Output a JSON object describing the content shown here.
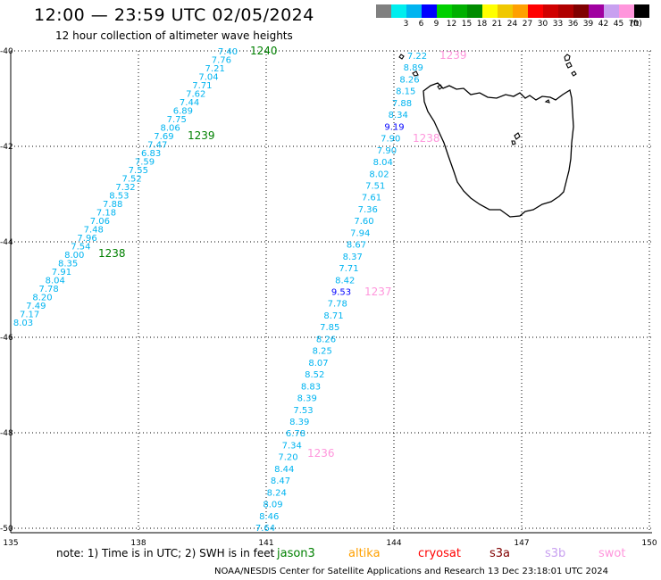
{
  "header": {
    "title": "12:00 — 23:59 UTC 02/05/2024",
    "subtitle": "12 hour collection of altimeter wave heights"
  },
  "legend": {
    "unit": "(ft)",
    "items": [
      {
        "label": "",
        "color": "#808080"
      },
      {
        "label": "3",
        "color": "#00eeee"
      },
      {
        "label": "6",
        "color": "#00b4f0"
      },
      {
        "label": "9",
        "color": "#0000ff"
      },
      {
        "label": "12",
        "color": "#00d000"
      },
      {
        "label": "15",
        "color": "#00b000"
      },
      {
        "label": "18",
        "color": "#008c00"
      },
      {
        "label": "21",
        "color": "#ffff00"
      },
      {
        "label": "24",
        "color": "#f0c800"
      },
      {
        "label": "27",
        "color": "#ffa000"
      },
      {
        "label": "30",
        "color": "#ff0000"
      },
      {
        "label": "33",
        "color": "#d00000"
      },
      {
        "label": "36",
        "color": "#b00000"
      },
      {
        "label": "39",
        "color": "#800000"
      },
      {
        "label": "42",
        "color": "#a000a0"
      },
      {
        "label": "45",
        "color": "#c8a0f0"
      },
      {
        "label": "70",
        "color": "#ff96dc"
      },
      {
        "label": "",
        "color": "#000000"
      }
    ]
  },
  "map": {
    "lat_labels": [
      "-40",
      "-42",
      "-44",
      "-46",
      "-48",
      "-50"
    ],
    "lon_labels": [
      "135",
      "138",
      "141",
      "144",
      "147",
      "150"
    ],
    "tracks": [
      {
        "color": "#00b4f0",
        "values": [
          "7.40",
          "7.76",
          "7.21",
          "7.04",
          "7.71",
          "7.62",
          "7.44",
          "6.89",
          "7.75",
          "8.06",
          "7.69",
          "7.47",
          "6.83",
          "7.59",
          "7.55",
          "7.52",
          "7.32",
          "8.53",
          "7.88",
          "7.18",
          "7.06",
          "7.48",
          "7.96",
          "7.54",
          "8.00",
          "8.35",
          "7.91",
          "8.04",
          "7.78",
          "8.20",
          "7.49",
          "7.17",
          "8.03"
        ],
        "pass_labels": [
          {
            "text": "1240",
            "color": "#008000"
          },
          {
            "text": "1239",
            "color": "#008000"
          },
          {
            "text": "1238",
            "color": "#008000"
          }
        ]
      },
      {
        "color": "#00b4f0",
        "values": [
          "7.22",
          "8.89",
          "8.26",
          "8.15",
          "7.88",
          "8.34",
          "9.19",
          "7.90",
          "7.90",
          "8.04",
          "8.02",
          "7.51",
          "7.61",
          "7.36",
          "7.60",
          "7.94",
          "8.67",
          "8.37",
          "7.71",
          "8.42",
          "9.53",
          "7.78",
          "8.71",
          "7.85",
          "8.26",
          "8.25",
          "8.07",
          "8.52",
          "8.83",
          "8.39",
          "7.53",
          "8.39",
          "6.78",
          "7.34",
          "7.20",
          "8.44",
          "8.47",
          "8.24",
          "8.09",
          "8.46",
          "7.64"
        ],
        "pass_labels": [
          {
            "text": "1239",
            "color": "#ff96dc"
          },
          {
            "text": "1238",
            "color": "#ff96dc"
          },
          {
            "text": "1237",
            "color": "#ff96dc"
          },
          {
            "text": "1236",
            "color": "#ff96dc"
          }
        ]
      }
    ]
  },
  "note": "note:  1) Time is in UTC; 2) SWH is in feet",
  "satellites": [
    {
      "name": "jason3",
      "color": "#008000"
    },
    {
      "name": "altika",
      "color": "#ffa000"
    },
    {
      "name": "cryosat",
      "color": "#ff0000"
    },
    {
      "name": "s3a",
      "color": "#800000"
    },
    {
      "name": "s3b",
      "color": "#c8a0f0"
    },
    {
      "name": "swot",
      "color": "#ff96dc"
    }
  ],
  "footer": "NOAA/NESDIS Center for Satellite Applications and Research    13 Dec 23:18:01 UTC 2024"
}
